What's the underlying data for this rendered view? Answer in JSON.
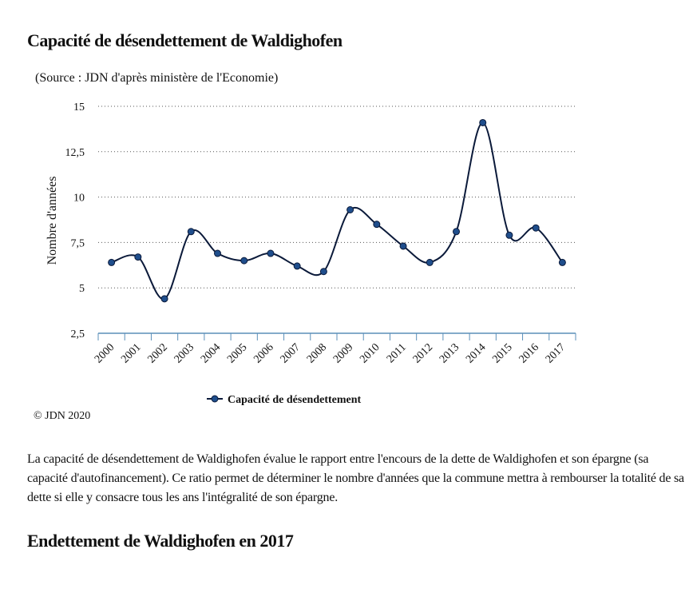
{
  "header": {
    "title": "Capacité de désendettement de Waldighofen"
  },
  "source": "(Source : JDN d'après ministère de l'Economie)",
  "copyright": "© JDN 2020",
  "description": "La capacité de désendettement de Waldighofen évalue le rapport entre l'encours de la dette de Waldighofen et son épargne (sa capacité d'autofinancement). Ce ratio permet de déterminer le nombre d'années que la commune mettra à rembourser la totalité de sa dette si elle y consacre tous les ans l'intégralité de son épargne.",
  "section2": {
    "title": "Endettement de Waldighofen en 2017"
  },
  "chart_data": {
    "type": "line",
    "title": "Capacité de désendettement de Waldighofen",
    "xlabel": "",
    "ylabel": "Nombre d'années",
    "categories": [
      "2000",
      "2001",
      "2002",
      "2003",
      "2004",
      "2005",
      "2006",
      "2007",
      "2008",
      "2009",
      "2010",
      "2011",
      "2012",
      "2013",
      "2014",
      "2015",
      "2016",
      "2017"
    ],
    "series": [
      {
        "name": "Capacité de désendettement",
        "values": [
          6.4,
          6.7,
          4.4,
          8.1,
          6.9,
          6.5,
          6.9,
          6.2,
          5.9,
          9.3,
          8.5,
          7.3,
          6.4,
          8.1,
          14.1,
          7.9,
          8.3,
          6.4
        ]
      }
    ],
    "yticks": [
      "2,5",
      "5",
      "7,5",
      "10",
      "12,5",
      "15"
    ],
    "ylim": [
      2.5,
      15
    ],
    "grid": "horizontal dotted",
    "smooth": true,
    "legend": "bottom-center",
    "colors": {
      "line": "#0b1a3a",
      "marker_fill": "#1f4e8c",
      "axis": "#5b8fb9",
      "grid": "#555555"
    }
  }
}
